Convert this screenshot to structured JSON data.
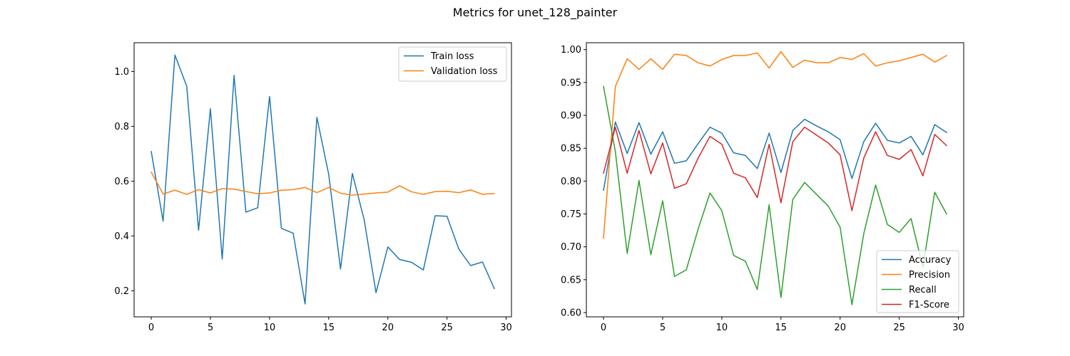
{
  "figure": {
    "suptitle": "Metrics for unet_128_painter"
  },
  "chart_data": [
    {
      "type": "line",
      "title": "",
      "xlabel": "",
      "ylabel": "",
      "xlim": [
        -1.45,
        30.45
      ],
      "ylim": [
        0.105,
        1.105
      ],
      "xticks": [
        0,
        5,
        10,
        15,
        20,
        25,
        30
      ],
      "yticks": [
        0.2,
        0.4,
        0.6,
        0.8,
        1.0
      ],
      "ytick_labels": [
        "0.2",
        "0.4",
        "0.6",
        "0.8",
        "1.0"
      ],
      "legend_position": "upper-right",
      "x": [
        0,
        1,
        2,
        3,
        4,
        5,
        6,
        7,
        8,
        9,
        10,
        11,
        12,
        13,
        14,
        15,
        16,
        17,
        18,
        19,
        20,
        21,
        22,
        23,
        24,
        25,
        26,
        27,
        28,
        29
      ],
      "series": [
        {
          "name": "Train loss",
          "color": "#1f77b4",
          "values": [
            0.708,
            0.454,
            1.06,
            0.946,
            0.421,
            0.864,
            0.316,
            0.986,
            0.487,
            0.503,
            0.909,
            0.428,
            0.41,
            0.152,
            0.833,
            0.625,
            0.28,
            0.628,
            0.459,
            0.193,
            0.36,
            0.314,
            0.304,
            0.276,
            0.474,
            0.472,
            0.352,
            0.292,
            0.305,
            0.208
          ]
        },
        {
          "name": "Validation loss",
          "color": "#ff7f0e",
          "values": [
            0.633,
            0.553,
            0.567,
            0.552,
            0.569,
            0.557,
            0.573,
            0.571,
            0.562,
            0.554,
            0.557,
            0.567,
            0.569,
            0.577,
            0.558,
            0.577,
            0.556,
            0.549,
            0.553,
            0.557,
            0.56,
            0.583,
            0.561,
            0.552,
            0.562,
            0.563,
            0.558,
            0.568,
            0.552,
            0.555
          ]
        }
      ]
    },
    {
      "type": "line",
      "title": "",
      "xlabel": "",
      "ylabel": "",
      "xlim": [
        -1.45,
        30.45
      ],
      "ylim": [
        0.5935,
        1.0105
      ],
      "xticks": [
        0,
        5,
        10,
        15,
        20,
        25,
        30
      ],
      "yticks": [
        0.6,
        0.65,
        0.7,
        0.75,
        0.8,
        0.85,
        0.9,
        0.95,
        1.0
      ],
      "ytick_labels": [
        "0.60",
        "0.65",
        "0.70",
        "0.75",
        "0.80",
        "0.85",
        "0.90",
        "0.95",
        "1.00"
      ],
      "legend_position": "lower-right",
      "x": [
        0,
        1,
        2,
        3,
        4,
        5,
        6,
        7,
        8,
        9,
        10,
        11,
        12,
        13,
        14,
        15,
        16,
        17,
        18,
        19,
        20,
        21,
        22,
        23,
        24,
        25,
        26,
        27,
        28,
        29
      ],
      "series": [
        {
          "name": "Accuracy",
          "color": "#1f77b4",
          "values": [
            0.786,
            0.89,
            0.842,
            0.889,
            0.841,
            0.875,
            0.827,
            0.831,
            0.857,
            0.882,
            0.873,
            0.843,
            0.839,
            0.819,
            0.873,
            0.813,
            0.877,
            0.894,
            0.884,
            0.875,
            0.863,
            0.804,
            0.86,
            0.888,
            0.862,
            0.858,
            0.868,
            0.84,
            0.886,
            0.874
          ]
        },
        {
          "name": "Precision",
          "color": "#ff7f0e",
          "values": [
            0.713,
            0.944,
            0.986,
            0.97,
            0.986,
            0.97,
            0.993,
            0.991,
            0.98,
            0.975,
            0.985,
            0.991,
            0.991,
            0.995,
            0.972,
            0.997,
            0.973,
            0.984,
            0.98,
            0.98,
            0.988,
            0.985,
            0.994,
            0.975,
            0.98,
            0.983,
            0.988,
            0.993,
            0.981,
            0.991
          ]
        },
        {
          "name": "Recall",
          "color": "#2ca02c",
          "values": [
            0.944,
            0.845,
            0.69,
            0.801,
            0.688,
            0.77,
            0.655,
            0.665,
            0.727,
            0.782,
            0.755,
            0.687,
            0.678,
            0.635,
            0.764,
            0.623,
            0.772,
            0.798,
            0.78,
            0.762,
            0.73,
            0.612,
            0.72,
            0.794,
            0.734,
            0.722,
            0.743,
            0.669,
            0.783,
            0.75
          ]
        },
        {
          "name": "F1-Score",
          "color": "#d62728",
          "values": [
            0.812,
            0.882,
            0.812,
            0.877,
            0.811,
            0.858,
            0.789,
            0.796,
            0.835,
            0.868,
            0.856,
            0.812,
            0.805,
            0.775,
            0.856,
            0.767,
            0.86,
            0.882,
            0.87,
            0.858,
            0.84,
            0.755,
            0.835,
            0.875,
            0.839,
            0.833,
            0.848,
            0.808,
            0.871,
            0.854
          ]
        }
      ]
    }
  ]
}
